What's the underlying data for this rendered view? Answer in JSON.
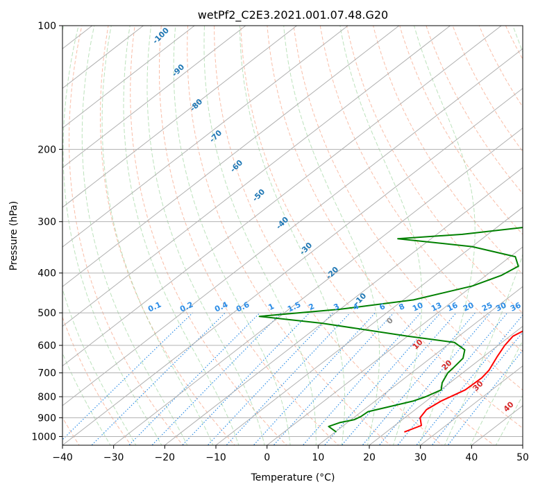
{
  "chart_data": {
    "type": "line",
    "title": "wetPf2_C2E3.2021.001.07.48.G20",
    "xlabel": "Temperature (°C)",
    "ylabel": "Pressure (hPa)",
    "xlim": [
      -40,
      50
    ],
    "ylim": [
      1050,
      100
    ],
    "y_scale": "log",
    "xticks": [
      -40,
      -30,
      -20,
      -10,
      0,
      10,
      20,
      30,
      40,
      50
    ],
    "yticks": [
      100,
      200,
      300,
      400,
      500,
      600,
      700,
      800,
      900,
      1000
    ],
    "grid": true,
    "series": [
      {
        "color": "#ff0000",
        "points": [
          [
            23.5,
            975
          ],
          [
            25.2,
            940
          ],
          [
            23.0,
            900
          ],
          [
            22.2,
            860
          ],
          [
            22.9,
            820
          ],
          [
            24.8,
            770
          ],
          [
            25.0,
            720
          ],
          [
            24.5,
            690
          ],
          [
            22.7,
            640
          ],
          [
            21.3,
            600
          ],
          [
            20.6,
            570
          ],
          [
            21.8,
            540
          ],
          [
            21.9,
            510
          ],
          [
            20.0,
            475
          ],
          [
            18.3,
            450
          ],
          [
            15.9,
            420
          ],
          [
            13.8,
            395
          ],
          [
            12.6,
            370
          ],
          [
            11.3,
            330
          ],
          [
            10.0,
            300
          ],
          [
            7.5,
            270
          ],
          [
            5.0,
            245
          ],
          [
            2.5,
            220
          ],
          [
            0.3,
            200
          ],
          [
            -0.9,
            185
          ],
          [
            -0.3,
            170
          ],
          [
            -0.7,
            155
          ],
          [
            -1.1,
            140
          ],
          [
            -0.7,
            128
          ],
          [
            0.8,
            118
          ],
          [
            3.0,
            108
          ],
          [
            4.5,
            100
          ]
        ]
      },
      {
        "color": "#008000",
        "points": [
          [
            10.2,
            975
          ],
          [
            7.3,
            945
          ],
          [
            8.5,
            925
          ],
          [
            10.6,
            910
          ],
          [
            11.1,
            895
          ],
          [
            11.3,
            870
          ],
          [
            14.3,
            845
          ],
          [
            17.4,
            820
          ],
          [
            18.8,
            800
          ],
          [
            20.1,
            770
          ],
          [
            18.5,
            740
          ],
          [
            17.1,
            700
          ],
          [
            16.9,
            680
          ],
          [
            16.4,
            645
          ],
          [
            14.6,
            615
          ],
          [
            10.7,
            590
          ],
          [
            0.0,
            570
          ],
          [
            -20.0,
            530
          ],
          [
            -34.0,
            510
          ],
          [
            -20.0,
            490
          ],
          [
            -8.0,
            465
          ],
          [
            0.0,
            430
          ],
          [
            3.0,
            405
          ],
          [
            4.0,
            385
          ],
          [
            1.0,
            365
          ],
          [
            -10.0,
            345
          ],
          [
            -26.5,
            330
          ],
          [
            -15.0,
            322
          ],
          [
            -5.0,
            310
          ],
          [
            -1.6,
            295
          ],
          [
            -1.2,
            275
          ],
          [
            -1.7,
            255
          ],
          [
            -3.3,
            235
          ],
          [
            -4.3,
            215
          ],
          [
            -5.0,
            195
          ],
          [
            -7.0,
            180
          ],
          [
            -8.7,
            168
          ],
          [
            -9.1,
            158
          ],
          [
            -8.2,
            148
          ],
          [
            -6.8,
            140
          ],
          [
            -5.9,
            130
          ],
          [
            -5.6,
            120
          ],
          [
            -5.3,
            112
          ],
          [
            -3.6,
            105
          ],
          [
            -1.4,
            100
          ]
        ]
      }
    ],
    "isotherm_labels": [
      "-100",
      "-90",
      "-80",
      "-70",
      "-60",
      "-50",
      "-40",
      "-30",
      "-20",
      "-10",
      "0",
      "10",
      "20",
      "30",
      "40"
    ],
    "mixing_ratio_labels": [
      "0.1",
      "0.2",
      "0.4",
      "0.6",
      "1",
      "1.5",
      "2",
      "3",
      "4",
      "6",
      "8",
      "10",
      "13",
      "16",
      "20",
      "25",
      "30",
      "36"
    ]
  }
}
